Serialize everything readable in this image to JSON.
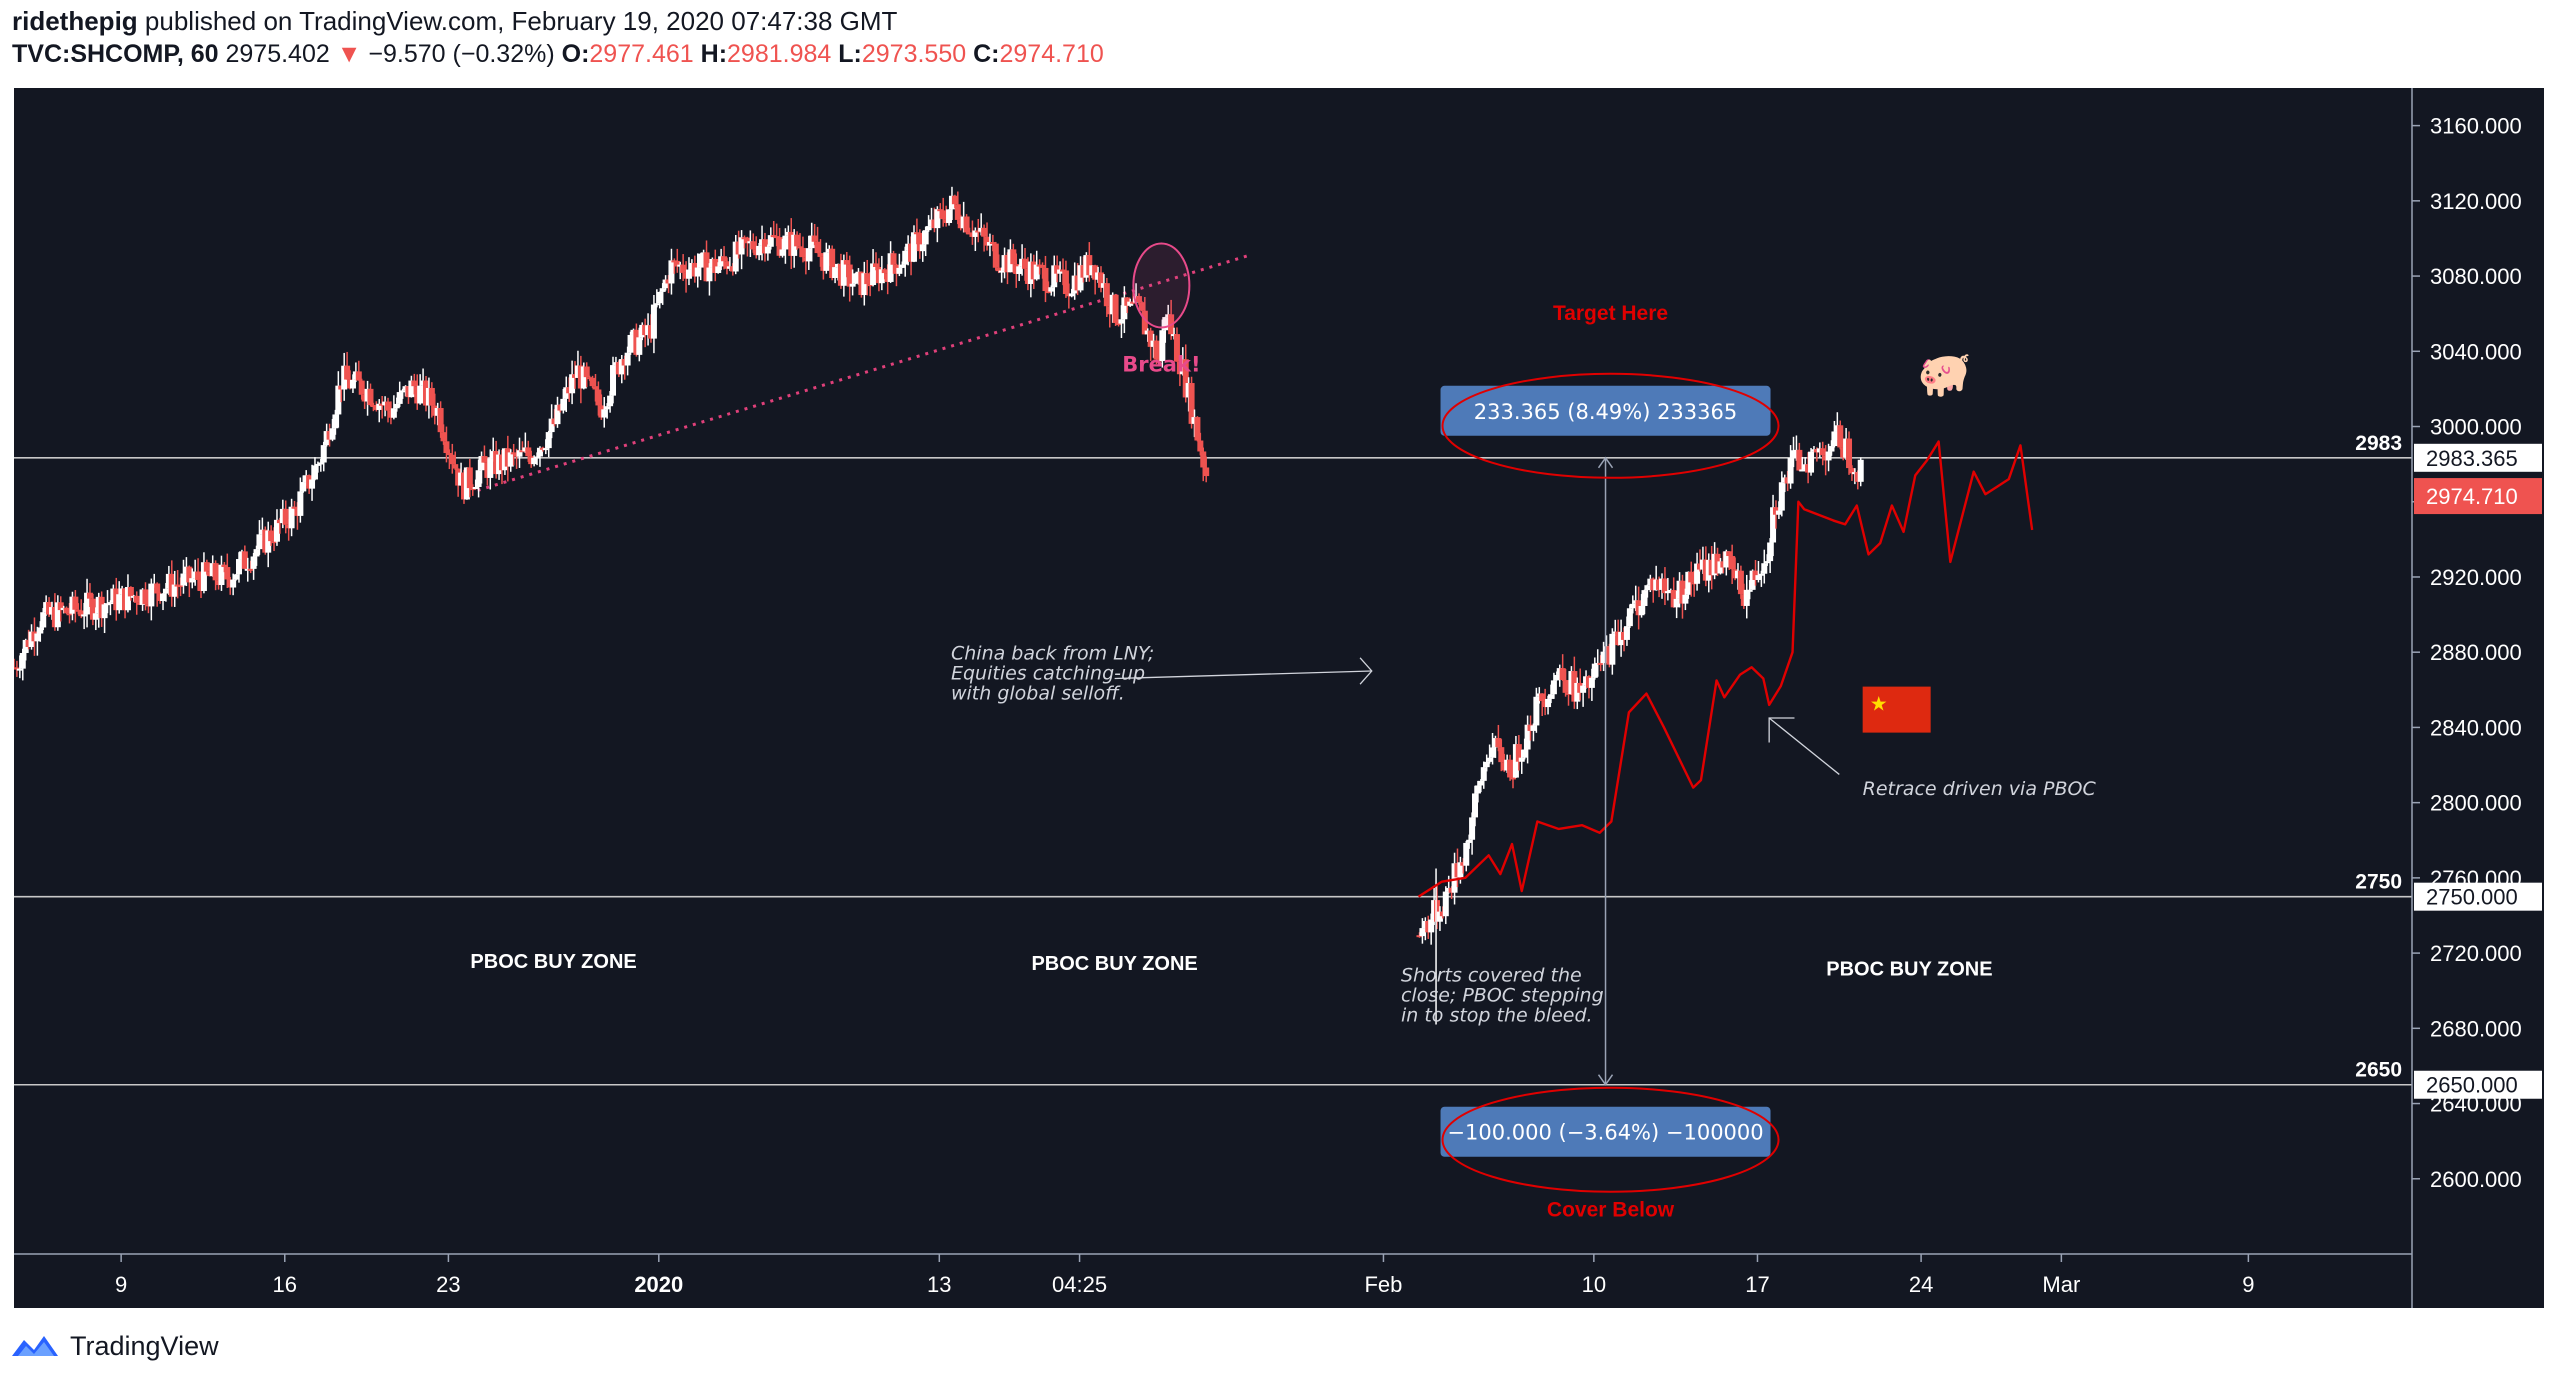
{
  "header": {
    "author": "ridethepig",
    "published_text": "published on TradingView.com, February 19, 2020 07:47:38 GMT",
    "symbol": "TVC:SHCOMP, 60",
    "last": "2975.402",
    "change": "−9.570 (−0.32%)",
    "o_label": "O:",
    "o_value": "2977.461",
    "h_label": "H:",
    "h_value": "2981.984",
    "l_label": "L:",
    "l_value": "2973.550",
    "c_label": "C:",
    "c_value": "2974.710"
  },
  "footer": {
    "brand": "TradingView"
  },
  "colors": {
    "background": "#131722",
    "up": "#ffffff",
    "down": "#ef5350",
    "projection": "#e00000",
    "annotation": "#e00000",
    "grid": "#c8c8c8",
    "measure_box": "#4e7ab8",
    "current_price": "#ef5350",
    "break_marker": "#e84a8a"
  },
  "chart_data": {
    "type": "candlestick",
    "symbol": "TVC:SHCOMP",
    "interval": "60",
    "ylim": [
      2560,
      3180
    ],
    "y_ticks": [
      2600,
      2640,
      2680,
      2720,
      2760,
      2800,
      2840,
      2880,
      2920,
      2960,
      3000,
      3040,
      3080,
      3120,
      3160
    ],
    "y_tick_labels": [
      "2600.000",
      "2640.000",
      "2680.000",
      "2720.000",
      "2760.000",
      "2800.000",
      "2840.000",
      "2880.000",
      "2920.000",
      "2960.000",
      "3000.000",
      "3040.000",
      "3080.000",
      "3120.000",
      "3160.000"
    ],
    "x_ticks": [
      {
        "label": "9",
        "date": "2019-12-09"
      },
      {
        "label": "16",
        "date": "2019-12-16"
      },
      {
        "label": "23",
        "date": "2019-12-23"
      },
      {
        "label": "2020",
        "date": "2020-01-01",
        "bold": true
      },
      {
        "label": "13",
        "date": "2020-01-13"
      },
      {
        "label": "04:25",
        "date": "2020-01-19"
      },
      {
        "label": "Feb",
        "date": "2020-02-01"
      },
      {
        "label": "10",
        "date": "2020-02-10"
      },
      {
        "label": "17",
        "date": "2020-02-17"
      },
      {
        "label": "24",
        "date": "2020-02-24"
      },
      {
        "label": "Mar",
        "date": "2020-03-01"
      },
      {
        "label": "9",
        "date": "2020-03-09"
      }
    ],
    "xlim": [
      "2019-12-04T10:00",
      "2020-03-16T00:00"
    ],
    "price_anchors": [
      {
        "t": "2019-12-04T10:00",
        "p": 2872
      },
      {
        "t": "2019-12-05T12:00",
        "p": 2898
      },
      {
        "t": "2019-12-09T12:00",
        "p": 2910
      },
      {
        "t": "2019-12-12T12:00",
        "p": 2920
      },
      {
        "t": "2019-12-13T14:00",
        "p": 2920
      },
      {
        "t": "2019-12-16T10:00",
        "p": 2955
      },
      {
        "t": "2019-12-17T14:00",
        "p": 2985
      },
      {
        "t": "2019-12-18T10:00",
        "p": 3025
      },
      {
        "t": "2019-12-19T12:00",
        "p": 3020
      },
      {
        "t": "2019-12-20T12:00",
        "p": 3008
      },
      {
        "t": "2019-12-21T12:00",
        "p": 3022
      },
      {
        "t": "2019-12-22T12:00",
        "p": 3010
      },
      {
        "t": "2019-12-23T14:00",
        "p": 2968
      },
      {
        "t": "2019-12-24T12:00",
        "p": 2978
      },
      {
        "t": "2019-12-26T12:00",
        "p": 2985
      },
      {
        "t": "2019-12-27T12:00",
        "p": 3000
      },
      {
        "t": "2019-12-28T12:00",
        "p": 3030
      },
      {
        "t": "2019-12-29T12:00",
        "p": 3010
      },
      {
        "t": "2019-12-30T12:00",
        "p": 3040
      },
      {
        "t": "2019-12-31T14:00",
        "p": 3050
      },
      {
        "t": "2020-01-01T12:00",
        "p": 3085
      },
      {
        "t": "2020-01-03T12:00",
        "p": 3085
      },
      {
        "t": "2020-01-05T12:00",
        "p": 3100
      },
      {
        "t": "2020-01-07T12:00",
        "p": 3095
      },
      {
        "t": "2020-01-09T12:00",
        "p": 3075
      },
      {
        "t": "2020-01-11T12:00",
        "p": 3090
      },
      {
        "t": "2020-01-13T14:00",
        "p": 3118
      },
      {
        "t": "2020-01-15T12:00",
        "p": 3090
      },
      {
        "t": "2020-01-17T12:00",
        "p": 3080
      },
      {
        "t": "2020-01-18T12:00",
        "p": 3075
      },
      {
        "t": "2020-01-19T14:00",
        "p": 3088
      },
      {
        "t": "2020-01-20T12:00",
        "p": 3060
      },
      {
        "t": "2020-01-21T12:00",
        "p": 3062
      },
      {
        "t": "2020-01-22T10:00",
        "p": 3035
      },
      {
        "t": "2020-01-22T16:00",
        "p": 3062
      },
      {
        "t": "2020-01-23T10:00",
        "p": 3030
      },
      {
        "t": "2020-01-24T10:00",
        "p": 2975
      },
      {
        "t": "2020-02-02T10:00",
        "p": 2730
      },
      {
        "t": "2020-02-03T12:00",
        "p": 2745
      },
      {
        "t": "2020-02-04T12:00",
        "p": 2775
      },
      {
        "t": "2020-02-05T12:00",
        "p": 2830
      },
      {
        "t": "2020-02-06T12:00",
        "p": 2818
      },
      {
        "t": "2020-02-07T12:00",
        "p": 2850
      },
      {
        "t": "2020-02-08T12:00",
        "p": 2870
      },
      {
        "t": "2020-02-09T12:00",
        "p": 2856
      },
      {
        "t": "2020-02-10T12:00",
        "p": 2878
      },
      {
        "t": "2020-02-11T12:00",
        "p": 2898
      },
      {
        "t": "2020-02-12T12:00",
        "p": 2918
      },
      {
        "t": "2020-02-13T12:00",
        "p": 2910
      },
      {
        "t": "2020-02-14T12:00",
        "p": 2922
      },
      {
        "t": "2020-02-15T12:00",
        "p": 2930
      },
      {
        "t": "2020-02-16T12:00",
        "p": 2910
      },
      {
        "t": "2020-02-17T10:00",
        "p": 2935
      },
      {
        "t": "2020-02-17T16:00",
        "p": 2955
      },
      {
        "t": "2020-02-18T12:00",
        "p": 2980
      },
      {
        "t": "2020-02-19T12:00",
        "p": 2985
      },
      {
        "t": "2020-02-20T12:00",
        "p": 2994
      },
      {
        "t": "2020-02-21T10:00",
        "p": 2975
      }
    ],
    "projection": [
      {
        "t": "2020-02-02T12:00",
        "p": 2750
      },
      {
        "t": "2020-02-03T12:00",
        "p": 2758
      },
      {
        "t": "2020-02-04T12:00",
        "p": 2760
      },
      {
        "t": "2020-02-05T12:00",
        "p": 2772
      },
      {
        "t": "2020-02-06T00:00",
        "p": 2762
      },
      {
        "t": "2020-02-06T12:00",
        "p": 2778
      },
      {
        "t": "2020-02-06T22:00",
        "p": 2753
      },
      {
        "t": "2020-02-07T14:00",
        "p": 2790
      },
      {
        "t": "2020-02-08T12:00",
        "p": 2786
      },
      {
        "t": "2020-02-09T12:00",
        "p": 2788
      },
      {
        "t": "2020-02-10T06:00",
        "p": 2784
      },
      {
        "t": "2020-02-10T18:00",
        "p": 2790
      },
      {
        "t": "2020-02-11T12:00",
        "p": 2848
      },
      {
        "t": "2020-02-12T06:00",
        "p": 2858
      },
      {
        "t": "2020-02-13T00:00",
        "p": 2840
      },
      {
        "t": "2020-02-14T06:00",
        "p": 2808
      },
      {
        "t": "2020-02-14T14:00",
        "p": 2812
      },
      {
        "t": "2020-02-15T06:00",
        "p": 2865
      },
      {
        "t": "2020-02-15T14:00",
        "p": 2856
      },
      {
        "t": "2020-02-16T06:00",
        "p": 2868
      },
      {
        "t": "2020-02-16T18:00",
        "p": 2872
      },
      {
        "t": "2020-02-17T06:00",
        "p": 2866
      },
      {
        "t": "2020-02-17T12:00",
        "p": 2852
      },
      {
        "t": "2020-02-18T00:00",
        "p": 2862
      },
      {
        "t": "2020-02-18T12:00",
        "p": 2880
      },
      {
        "t": "2020-02-18T18:00",
        "p": 2960
      },
      {
        "t": "2020-02-19T00:00",
        "p": 2956
      },
      {
        "t": "2020-02-20T06:00",
        "p": 2950
      },
      {
        "t": "2020-02-20T18:00",
        "p": 2948
      },
      {
        "t": "2020-02-21T06:00",
        "p": 2958
      },
      {
        "t": "2020-02-21T18:00",
        "p": 2932
      },
      {
        "t": "2020-02-22T06:00",
        "p": 2938
      },
      {
        "t": "2020-02-22T18:00",
        "p": 2958
      },
      {
        "t": "2020-02-23T06:00",
        "p": 2944
      },
      {
        "t": "2020-02-23T18:00",
        "p": 2974
      },
      {
        "t": "2020-02-24T06:00",
        "p": 2982
      },
      {
        "t": "2020-02-24T18:00",
        "p": 2992
      },
      {
        "t": "2020-02-25T06:00",
        "p": 2928
      },
      {
        "t": "2020-02-25T18:00",
        "p": 2952
      },
      {
        "t": "2020-02-26T06:00",
        "p": 2976
      },
      {
        "t": "2020-02-26T18:00",
        "p": 2964
      },
      {
        "t": "2020-02-27T06:00",
        "p": 2968
      },
      {
        "t": "2020-02-27T18:00",
        "p": 2972
      },
      {
        "t": "2020-02-28T06:00",
        "p": 2990
      },
      {
        "t": "2020-02-28T18:00",
        "p": 2945
      }
    ],
    "horizontal_levels": [
      {
        "price": 2983.365,
        "side_label": "2983",
        "axis_label": "2983.365"
      },
      {
        "price": 2750,
        "side_label": "2750",
        "axis_label": "2750.000"
      },
      {
        "price": 2650,
        "side_label": "2650",
        "axis_label": "2650.000"
      }
    ],
    "current_price": {
      "price": 2974.71,
      "label": "2974.710"
    },
    "trendline": {
      "from": {
        "t": "2019-12-24T06:00",
        "p": 2966
      },
      "to": {
        "t": "2020-01-26T06:00",
        "p": 3091
      }
    },
    "break_marker": {
      "t": "2020-01-22T12:00",
      "p": 3075,
      "label": "Break!"
    },
    "measure": {
      "t": "2020-02-10T12:00",
      "up": {
        "from": 2750,
        "to": 2983.365,
        "label": "233.365 (8.49%) 233365",
        "annotation": "Target Here"
      },
      "down": {
        "from": 2750,
        "to": 2650,
        "label": "−100.000 (−3.64%) −100000",
        "annotation": "Cover Below"
      }
    },
    "zones": [
      {
        "label": "PBOC BUY ZONE",
        "t": "2019-12-27T12:00",
        "p": 2712
      },
      {
        "label": "PBOC BUY ZONE",
        "t": "2020-01-20T12:00",
        "p": 2711
      },
      {
        "label": "PBOC BUY ZONE",
        "t": "2020-02-23T12:00",
        "p": 2708
      }
    ],
    "notes": [
      {
        "lines": [
          "China back from LNY;",
          "Equities catching-up",
          "with global selloff."
        ],
        "t": "2020-01-13T12:00",
        "p": 2876
      },
      {
        "lines": [
          "Shorts covered the",
          "close; PBOC stepping",
          "in to stop the bleed."
        ],
        "t": "2020-02-01T18:00",
        "p": 2705
      },
      {
        "lines": [
          "Retrace driven via PBOC"
        ],
        "t": "2020-02-21T12:00",
        "p": 2804
      }
    ],
    "emojis": [
      "🐖",
      "🇨🇳"
    ]
  }
}
